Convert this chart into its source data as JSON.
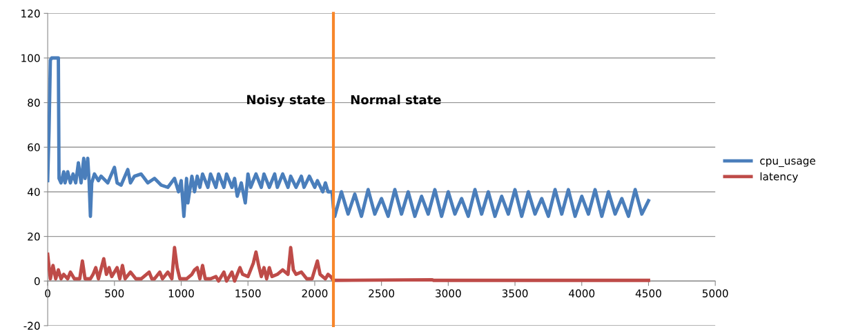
{
  "chart_data": {
    "type": "line",
    "xlim": [
      0,
      5000
    ],
    "xticks": [
      0,
      500,
      1000,
      1500,
      2000,
      2500,
      3000,
      3500,
      4000,
      4500,
      5000
    ],
    "ylim": [
      -20,
      120
    ],
    "yticks": [
      -20,
      0,
      20,
      40,
      60,
      80,
      100,
      120
    ],
    "grid": "y",
    "legend": "right",
    "marker": "none",
    "line_style": "solid",
    "annotations": [
      "Noisy state",
      "Normal state"
    ],
    "ref_lines": [
      {
        "axis": "x",
        "value": 2140,
        "color": "#f7862b"
      }
    ],
    "series": [
      {
        "name": "cpu_usage",
        "color": "#4a7ebb",
        "x": [
          0,
          10,
          20,
          30,
          80,
          85,
          100,
          120,
          130,
          150,
          170,
          190,
          210,
          230,
          250,
          270,
          280,
          300,
          310,
          320,
          330,
          350,
          380,
          400,
          450,
          500,
          520,
          550,
          600,
          620,
          650,
          700,
          750,
          800,
          850,
          900,
          950,
          980,
          1000,
          1020,
          1040,
          1050,
          1080,
          1100,
          1120,
          1140,
          1160,
          1200,
          1220,
          1260,
          1280,
          1320,
          1340,
          1380,
          1400,
          1420,
          1450,
          1480,
          1500,
          1520,
          1560,
          1600,
          1620,
          1660,
          1700,
          1720,
          1760,
          1800,
          1820,
          1860,
          1900,
          1920,
          1960,
          2000,
          2020,
          2060,
          2080,
          2100,
          2130,
          2140,
          2150,
          2200,
          2250,
          2300,
          2350,
          2400,
          2450,
          2500,
          2550,
          2600,
          2650,
          2700,
          2750,
          2800,
          2850,
          2900,
          2950,
          3000,
          3050,
          3100,
          3150,
          3200,
          3250,
          3300,
          3350,
          3400,
          3450,
          3500,
          3550,
          3600,
          3650,
          3700,
          3750,
          3800,
          3850,
          3900,
          3950,
          4000,
          4050,
          4100,
          4150,
          4200,
          4250,
          4300,
          4350,
          4400,
          4450,
          4500
        ],
        "values": [
          45,
          67,
          99,
          100,
          100,
          46,
          44,
          49,
          44,
          49,
          44,
          48,
          44,
          53,
          44,
          55,
          46,
          55,
          45,
          29,
          44,
          48,
          45,
          47,
          44,
          51,
          44,
          43,
          50,
          44,
          47,
          48,
          44,
          46,
          43,
          42,
          46,
          40,
          45,
          29,
          46,
          35,
          47,
          40,
          47,
          42,
          48,
          42,
          48,
          42,
          48,
          42,
          48,
          42,
          46,
          38,
          44,
          35,
          48,
          42,
          48,
          42,
          48,
          42,
          48,
          42,
          48,
          42,
          47,
          42,
          47,
          42,
          47,
          42,
          45,
          40,
          44,
          40,
          40,
          33,
          29,
          40,
          30,
          39,
          29,
          41,
          30,
          37,
          29,
          41,
          30,
          40,
          29,
          38,
          30,
          41,
          29,
          40,
          30,
          37,
          29,
          41,
          30,
          40,
          29,
          38,
          30,
          41,
          29,
          40,
          30,
          37,
          29,
          41,
          30,
          41,
          29,
          38,
          30,
          41,
          29,
          40,
          30,
          37,
          29,
          41,
          30,
          36
        ]
      },
      {
        "name": "latency",
        "color": "#be4b48",
        "x": [
          0,
          20,
          40,
          60,
          80,
          100,
          120,
          150,
          170,
          200,
          240,
          260,
          280,
          320,
          340,
          360,
          380,
          420,
          440,
          460,
          480,
          520,
          540,
          560,
          580,
          620,
          660,
          700,
          760,
          780,
          800,
          840,
          860,
          900,
          930,
          950,
          970,
          990,
          1040,
          1080,
          1100,
          1120,
          1140,
          1160,
          1180,
          1220,
          1260,
          1280,
          1320,
          1340,
          1380,
          1400,
          1440,
          1460,
          1500,
          1540,
          1560,
          1580,
          1600,
          1620,
          1640,
          1660,
          1680,
          1720,
          1760,
          1800,
          1820,
          1840,
          1860,
          1900,
          1940,
          1980,
          2020,
          2040,
          2080,
          2100,
          2120,
          2140,
          2880,
          2890,
          4500
        ],
        "values": [
          12,
          1,
          7,
          1,
          5,
          1,
          3,
          1,
          4,
          1,
          1,
          9,
          1,
          1,
          3,
          6,
          1,
          10,
          3,
          6,
          2,
          6,
          1,
          7,
          1,
          4,
          1,
          1,
          4,
          1,
          1,
          4,
          1,
          4,
          1,
          15,
          6,
          1,
          1,
          3,
          5,
          6,
          1,
          7,
          1,
          1,
          2,
          0,
          4,
          0,
          4,
          0,
          6,
          3,
          2,
          8,
          13,
          7,
          2,
          6,
          1,
          6,
          2,
          3,
          5,
          3,
          15,
          5,
          3,
          4,
          1,
          1,
          9,
          3,
          1,
          3,
          2,
          0.3,
          0.6,
          0.3,
          0.3
        ]
      }
    ]
  }
}
